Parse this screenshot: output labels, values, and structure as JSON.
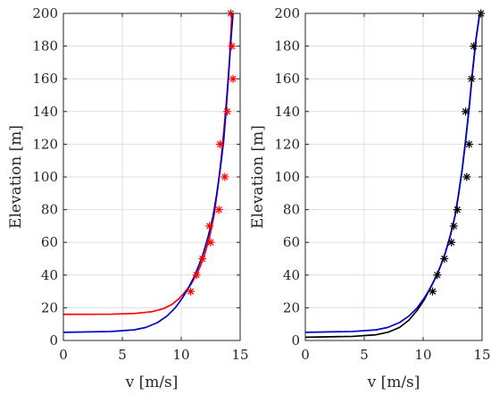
{
  "chart_data": [
    {
      "type": "line",
      "xlabel": "v [m/s]",
      "ylabel": "Elevation [m]",
      "xlim": [
        0,
        15
      ],
      "ylim": [
        0,
        200
      ],
      "xticks": [
        "0",
        "5",
        "10",
        "15"
      ],
      "yticks": [
        "0",
        "20",
        "40",
        "60",
        "80",
        "100",
        "120",
        "140",
        "160",
        "180",
        "200"
      ],
      "grid": true,
      "series": [
        {
          "color": "#ff0000",
          "style": "line",
          "points": [
            [
              0.0,
              16
            ],
            [
              4.0,
              16.1
            ],
            [
              6.0,
              16.5
            ],
            [
              7.5,
              17.6
            ],
            [
              8.5,
              19.5
            ],
            [
              9.2,
              22
            ],
            [
              9.8,
              25.5
            ],
            [
              10.3,
              29.5
            ],
            [
              10.8,
              34
            ],
            [
              11.2,
              39
            ],
            [
              11.6,
              45
            ],
            [
              12.0,
              53
            ],
            [
              12.4,
              63
            ],
            [
              12.8,
              77
            ],
            [
              13.1,
              93
            ],
            [
              13.4,
              112
            ],
            [
              13.7,
              135
            ],
            [
              13.9,
              152
            ],
            [
              14.1,
              172
            ],
            [
              14.3,
              200
            ]
          ]
        },
        {
          "color": "#0000cc",
          "style": "line",
          "points": [
            [
              0.0,
              5
            ],
            [
              4.0,
              5.5
            ],
            [
              6.0,
              6.5
            ],
            [
              7.0,
              8
            ],
            [
              8.0,
              11
            ],
            [
              8.8,
              15
            ],
            [
              9.5,
              20
            ],
            [
              10.1,
              26
            ],
            [
              10.6,
              32
            ],
            [
              11.1,
              39
            ],
            [
              11.5,
              46
            ],
            [
              11.9,
              54
            ],
            [
              12.3,
              64
            ],
            [
              12.7,
              76
            ],
            [
              13.0,
              89
            ],
            [
              13.3,
              104
            ],
            [
              13.6,
              122
            ],
            [
              13.8,
              140
            ],
            [
              14.0,
              160
            ],
            [
              14.2,
              182
            ],
            [
              14.4,
              200
            ]
          ]
        },
        {
          "color": "#ff0000",
          "style": "markers",
          "points": [
            [
              10.8,
              30
            ],
            [
              11.3,
              40
            ],
            [
              11.8,
              50
            ],
            [
              12.5,
              60
            ],
            [
              12.4,
              70
            ],
            [
              13.2,
              80
            ],
            [
              13.7,
              100
            ],
            [
              13.3,
              120
            ],
            [
              13.9,
              140
            ],
            [
              14.4,
              160
            ],
            [
              14.3,
              180
            ],
            [
              14.2,
              200
            ]
          ]
        }
      ]
    },
    {
      "type": "line",
      "xlabel": "v [m/s]",
      "ylabel": "Elevation [m]",
      "xlim": [
        0,
        15
      ],
      "ylim": [
        0,
        200
      ],
      "xticks": [
        "0",
        "5",
        "10",
        "15"
      ],
      "yticks": [
        "0",
        "20",
        "40",
        "60",
        "80",
        "100",
        "120",
        "140",
        "160",
        "180",
        "200"
      ],
      "grid": true,
      "series": [
        {
          "color": "#000000",
          "style": "line",
          "points": [
            [
              0.0,
              2
            ],
            [
              4.0,
              2.5
            ],
            [
              6.0,
              3.5
            ],
            [
              7.0,
              5
            ],
            [
              8.0,
              8
            ],
            [
              8.8,
              12.5
            ],
            [
              9.5,
              18.5
            ],
            [
              10.1,
              25
            ],
            [
              10.6,
              32
            ],
            [
              11.1,
              39
            ],
            [
              11.5,
              46
            ],
            [
              11.9,
              54
            ],
            [
              12.3,
              64
            ],
            [
              12.7,
              76
            ],
            [
              13.0,
              89
            ],
            [
              13.3,
              104
            ],
            [
              13.6,
              122
            ],
            [
              13.9,
              142
            ],
            [
              14.2,
              165
            ],
            [
              14.5,
              185
            ],
            [
              14.8,
              200
            ]
          ]
        },
        {
          "color": "#0000cc",
          "style": "line",
          "points": [
            [
              0.0,
              5
            ],
            [
              4.0,
              5.5
            ],
            [
              6.0,
              6.5
            ],
            [
              7.0,
              8
            ],
            [
              8.0,
              11
            ],
            [
              8.8,
              15
            ],
            [
              9.5,
              20
            ],
            [
              10.1,
              26
            ],
            [
              10.6,
              32
            ],
            [
              11.1,
              39
            ],
            [
              11.5,
              46
            ],
            [
              11.9,
              54
            ],
            [
              12.3,
              64
            ],
            [
              12.7,
              76
            ],
            [
              13.0,
              89
            ],
            [
              13.3,
              104
            ],
            [
              13.6,
              122
            ],
            [
              13.9,
              142
            ],
            [
              14.2,
              165
            ],
            [
              14.5,
              185
            ],
            [
              14.8,
              200
            ]
          ]
        },
        {
          "color": "#000000",
          "style": "markers",
          "points": [
            [
              10.8,
              30
            ],
            [
              11.2,
              40
            ],
            [
              11.8,
              50
            ],
            [
              12.4,
              60
            ],
            [
              12.6,
              70
            ],
            [
              12.9,
              80
            ],
            [
              13.7,
              100
            ],
            [
              13.9,
              120
            ],
            [
              13.6,
              140
            ],
            [
              14.1,
              160
            ],
            [
              14.3,
              180
            ],
            [
              14.9,
              200
            ]
          ]
        }
      ]
    }
  ]
}
